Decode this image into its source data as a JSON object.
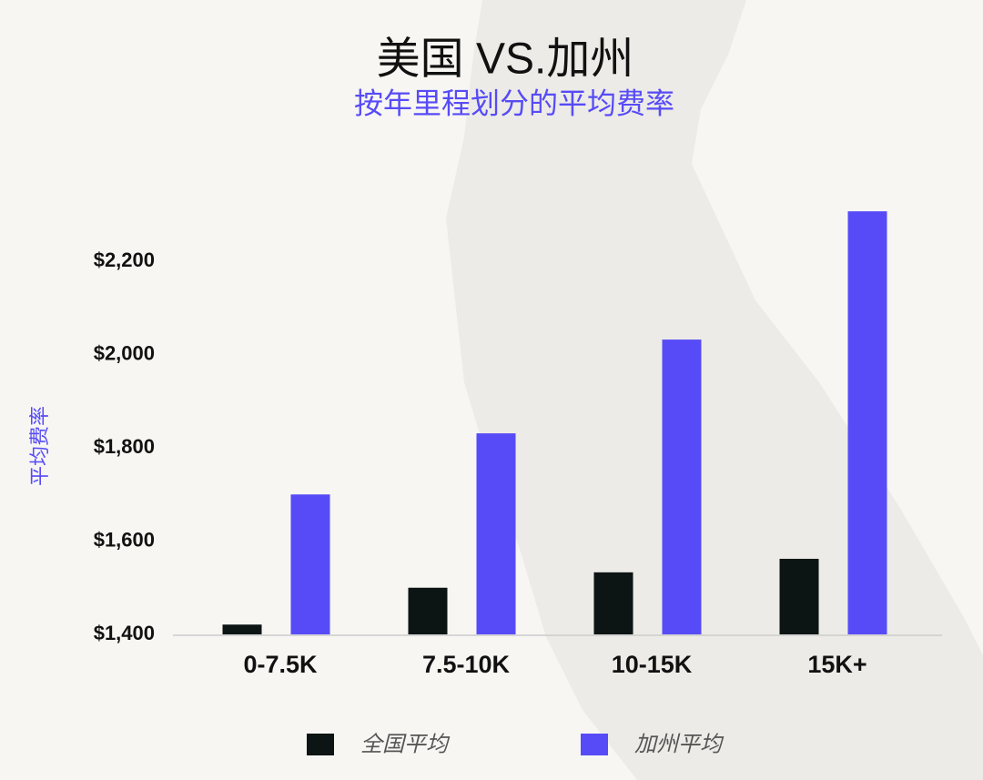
{
  "chart_data": {
    "type": "bar",
    "title": "美国 VS.加州",
    "subtitle": "按年里程划分的平均费率",
    "y_label": "平均费率",
    "categories": [
      "0-7.5K",
      "7.5-10K",
      "10-15K",
      "15K+"
    ],
    "series": [
      {
        "name": "全国平均",
        "color": "#0d1414",
        "values": [
          1421,
          1500,
          1533,
          1562
        ]
      },
      {
        "name": "加州平均",
        "color": "#574bf7",
        "values": [
          1700,
          1831,
          2032,
          2307
        ]
      }
    ],
    "ylim": [
      1400,
      2400
    ],
    "yticks": [
      {
        "value": 1400,
        "label": "$1,400"
      },
      {
        "value": 1600,
        "label": "$1,600"
      },
      {
        "value": 1800,
        "label": "$1,800"
      },
      {
        "value": 2000,
        "label": "$2,000"
      },
      {
        "value": 2200,
        "label": "$2,200"
      }
    ],
    "grid": false
  }
}
